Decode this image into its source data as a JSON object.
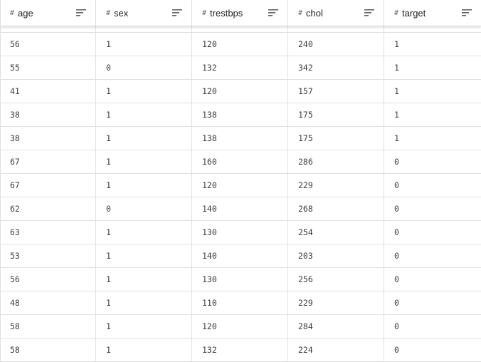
{
  "columns": [
    {
      "type_icon": "#",
      "label": "age"
    },
    {
      "type_icon": "#",
      "label": "sex"
    },
    {
      "type_icon": "#",
      "label": "trestbps"
    },
    {
      "type_icon": "#",
      "label": "chol"
    },
    {
      "type_icon": "#",
      "label": "target"
    }
  ],
  "sort_icon": "sort-lines-icon",
  "rows": [
    [
      "56",
      "1",
      "120",
      "240",
      "1"
    ],
    [
      "55",
      "0",
      "132",
      "342",
      "1"
    ],
    [
      "41",
      "1",
      "120",
      "157",
      "1"
    ],
    [
      "38",
      "1",
      "138",
      "175",
      "1"
    ],
    [
      "38",
      "1",
      "138",
      "175",
      "1"
    ],
    [
      "67",
      "1",
      "160",
      "286",
      "0"
    ],
    [
      "67",
      "1",
      "120",
      "229",
      "0"
    ],
    [
      "62",
      "0",
      "140",
      "268",
      "0"
    ],
    [
      "63",
      "1",
      "130",
      "254",
      "0"
    ],
    [
      "53",
      "1",
      "140",
      "203",
      "0"
    ],
    [
      "56",
      "1",
      "130",
      "256",
      "0"
    ],
    [
      "48",
      "1",
      "110",
      "229",
      "0"
    ],
    [
      "58",
      "1",
      "120",
      "284",
      "0"
    ],
    [
      "58",
      "1",
      "132",
      "224",
      "0"
    ]
  ],
  "colors": {
    "border": "#e0e0e0",
    "header_text": "#202124",
    "cell_text": "#3c4043"
  }
}
